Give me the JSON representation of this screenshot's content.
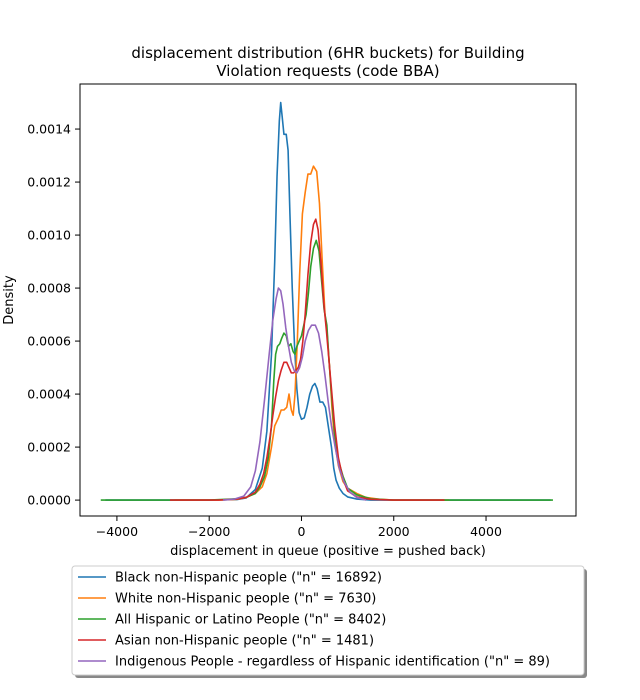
{
  "chart_data": {
    "type": "line",
    "title_lines": [
      "displacement distribution (6HR buckets) for Building",
      "Violation requests (code BBA)"
    ],
    "xlabel": "displacement in queue (positive = pushed back)",
    "ylabel": "Density",
    "xlim": [
      -4800,
      5950
    ],
    "ylim": [
      -6e-05,
      0.00157
    ],
    "xticks": [
      -4000,
      -2000,
      0,
      2000,
      4000
    ],
    "xtick_labels": [
      "−4000",
      "−2000",
      "0",
      "2000",
      "4000"
    ],
    "yticks": [
      0,
      0.0002,
      0.0004,
      0.0006,
      0.0008,
      0.001,
      0.0012,
      0.0014
    ],
    "ytick_labels": [
      "0.0000",
      "0.0002",
      "0.0004",
      "0.0006",
      "0.0008",
      "0.0010",
      "0.0012",
      "0.0014"
    ],
    "grid": false,
    "legend_placement": "below plot",
    "series": [
      {
        "name": "Black non-Hispanic people (\"n\" = 16892)",
        "color": "#1f77b4",
        "points": [
          [
            -4250,
            0
          ],
          [
            -2000,
            0
          ],
          [
            -1400,
            2e-06
          ],
          [
            -1200,
            8e-06
          ],
          [
            -1000,
            4e-05
          ],
          [
            -850,
            0.00012
          ],
          [
            -750,
            0.00026
          ],
          [
            -650,
            0.00055
          ],
          [
            -580,
            0.0009
          ],
          [
            -530,
            0.00122
          ],
          [
            -480,
            0.00143
          ],
          [
            -450,
            0.0015
          ],
          [
            -420,
            0.00145
          ],
          [
            -380,
            0.00138
          ],
          [
            -330,
            0.00138
          ],
          [
            -290,
            0.00132
          ],
          [
            -250,
            0.00108
          ],
          [
            -200,
            0.0008
          ],
          [
            -150,
            0.00058
          ],
          [
            -100,
            0.00042
          ],
          [
            -50,
            0.00033
          ],
          [
            0,
            0.000305
          ],
          [
            60,
            0.00031
          ],
          [
            120,
            0.00035
          ],
          [
            180,
            0.0004
          ],
          [
            240,
            0.00043
          ],
          [
            290,
            0.00044
          ],
          [
            340,
            0.00042
          ],
          [
            400,
            0.00037
          ],
          [
            460,
            0.00037
          ],
          [
            520,
            0.00035
          ],
          [
            580,
            0.00028
          ],
          [
            650,
            0.0002
          ],
          [
            700,
            0.00012
          ],
          [
            750,
            7.5e-05
          ],
          [
            820,
            4.5e-05
          ],
          [
            900,
            2.5e-05
          ],
          [
            1000,
            1.2e-05
          ],
          [
            1200,
            4e-06
          ],
          [
            1500,
            0
          ],
          [
            2500,
            0
          ],
          [
            5400,
            0
          ]
        ]
      },
      {
        "name": "White non-Hispanic people (\"n\" = 7630)",
        "color": "#ff7f0e",
        "points": [
          [
            -2750,
            0
          ],
          [
            -1800,
            0
          ],
          [
            -1400,
            3e-06
          ],
          [
            -1200,
            1e-05
          ],
          [
            -1000,
            2.5e-05
          ],
          [
            -850,
            5e-05
          ],
          [
            -750,
            0.0001
          ],
          [
            -650,
            0.0002
          ],
          [
            -580,
            0.00028
          ],
          [
            -500,
            0.00031
          ],
          [
            -440,
            0.00034
          ],
          [
            -380,
            0.00034
          ],
          [
            -320,
            0.00035
          ],
          [
            -270,
            0.0004
          ],
          [
            -220,
            0.00034
          ],
          [
            -180,
            0.00032
          ],
          [
            -140,
            0.0004
          ],
          [
            -90,
            0.0006
          ],
          [
            -40,
            0.00085
          ],
          [
            20,
            0.00108
          ],
          [
            80,
            0.00116
          ],
          [
            140,
            0.00123
          ],
          [
            200,
            0.00123
          ],
          [
            260,
            0.00126
          ],
          [
            330,
            0.00124
          ],
          [
            390,
            0.00112
          ],
          [
            450,
            0.0009
          ],
          [
            510,
            0.0007
          ],
          [
            560,
            0.00062
          ],
          [
            610,
            0.0005
          ],
          [
            660,
            0.00035
          ],
          [
            720,
            0.00022
          ],
          [
            800,
            0.00013
          ],
          [
            900,
            7e-05
          ],
          [
            1000,
            4.5e-05
          ],
          [
            1200,
            2.5e-05
          ],
          [
            1400,
            1e-05
          ],
          [
            1700,
            3e-06
          ],
          [
            2000,
            0
          ],
          [
            3200,
            0
          ]
        ]
      },
      {
        "name": "All Hispanic or Latino People (\"n\" = 8402)",
        "color": "#2ca02c",
        "points": [
          [
            -4350,
            0
          ],
          [
            -2000,
            0
          ],
          [
            -1400,
            5e-06
          ],
          [
            -1200,
            1e-05
          ],
          [
            -1000,
            2.5e-05
          ],
          [
            -900,
            5e-05
          ],
          [
            -800,
            9e-05
          ],
          [
            -720,
            0.00016
          ],
          [
            -650,
            0.00028
          ],
          [
            -600,
            0.00045
          ],
          [
            -560,
            0.00055
          ],
          [
            -520,
            0.00058
          ],
          [
            -470,
            0.00059
          ],
          [
            -430,
            0.00061
          ],
          [
            -380,
            0.00063
          ],
          [
            -330,
            0.00062
          ],
          [
            -280,
            0.00058
          ],
          [
            -230,
            0.00059
          ],
          [
            -180,
            0.00056
          ],
          [
            -140,
            0.00055
          ],
          [
            -100,
            0.00058
          ],
          [
            -50,
            0.0006
          ],
          [
            0,
            0.00062
          ],
          [
            50,
            0.00066
          ],
          [
            100,
            0.0007
          ],
          [
            150,
            0.00078
          ],
          [
            200,
            0.00088
          ],
          [
            260,
            0.00095
          ],
          [
            320,
            0.00098
          ],
          [
            380,
            0.00094
          ],
          [
            440,
            0.00082
          ],
          [
            490,
            0.00072
          ],
          [
            550,
            0.00066
          ],
          [
            600,
            0.00052
          ],
          [
            650,
            0.0004
          ],
          [
            720,
            0.00025
          ],
          [
            800,
            0.00015
          ],
          [
            900,
            9e-05
          ],
          [
            1000,
            4.5e-05
          ],
          [
            1200,
            2e-05
          ],
          [
            1500,
            5e-06
          ],
          [
            2000,
            0
          ],
          [
            5450,
            0
          ]
        ]
      },
      {
        "name": "Asian non-Hispanic people (\"n\" = 1481)",
        "color": "#d62728",
        "points": [
          [
            -2850,
            0
          ],
          [
            -1800,
            0
          ],
          [
            -1400,
            4e-06
          ],
          [
            -1200,
            1e-05
          ],
          [
            -1000,
            3e-05
          ],
          [
            -900,
            6e-05
          ],
          [
            -820,
            0.0001
          ],
          [
            -750,
            0.00016
          ],
          [
            -680,
            0.00024
          ],
          [
            -620,
            0.00032
          ],
          [
            -560,
            0.00039
          ],
          [
            -500,
            0.00045
          ],
          [
            -440,
            0.00049
          ],
          [
            -380,
            0.00052
          ],
          [
            -320,
            0.00052
          ],
          [
            -270,
            0.0005
          ],
          [
            -220,
            0.00048
          ],
          [
            -170,
            0.00048
          ],
          [
            -120,
            0.00049
          ],
          [
            -70,
            0.0005
          ],
          [
            -20,
            0.00053
          ],
          [
            30,
            0.0006
          ],
          [
            80,
            0.0007
          ],
          [
            140,
            0.00085
          ],
          [
            200,
            0.00097
          ],
          [
            260,
            0.00104
          ],
          [
            310,
            0.00106
          ],
          [
            360,
            0.00102
          ],
          [
            420,
            0.0009
          ],
          [
            480,
            0.00075
          ],
          [
            540,
            0.00064
          ],
          [
            600,
            0.00052
          ],
          [
            650,
            0.00042
          ],
          [
            720,
            0.00028
          ],
          [
            800,
            0.00016
          ],
          [
            900,
            8e-05
          ],
          [
            1000,
            3.5e-05
          ],
          [
            1200,
            1.2e-05
          ],
          [
            1500,
            3e-06
          ],
          [
            2000,
            0
          ],
          [
            3100,
            0
          ]
        ]
      },
      {
        "name": "Indigenous People - regardless of Hispanic identification (\"n\" = 89)",
        "color": "#9467bd",
        "points": [
          [
            -1700,
            0
          ],
          [
            -1450,
            4e-06
          ],
          [
            -1250,
            1.5e-05
          ],
          [
            -1100,
            5e-05
          ],
          [
            -1000,
            0.00011
          ],
          [
            -900,
            0.00022
          ],
          [
            -800,
            0.00038
          ],
          [
            -700,
            0.00055
          ],
          [
            -620,
            0.00068
          ],
          [
            -550,
            0.00076
          ],
          [
            -500,
            0.0008
          ],
          [
            -450,
            0.00079
          ],
          [
            -400,
            0.00074
          ],
          [
            -340,
            0.00065
          ],
          [
            -280,
            0.00058
          ],
          [
            -220,
            0.00052
          ],
          [
            -160,
            0.00049
          ],
          [
            -100,
            0.00048
          ],
          [
            -40,
            0.0005
          ],
          [
            20,
            0.00054
          ],
          [
            80,
            0.0006
          ],
          [
            150,
            0.00064
          ],
          [
            220,
            0.00066
          ],
          [
            300,
            0.00066
          ],
          [
            370,
            0.00063
          ],
          [
            440,
            0.00056
          ],
          [
            510,
            0.00047
          ],
          [
            580,
            0.00037
          ],
          [
            650,
            0.00028
          ],
          [
            730,
            0.0002
          ],
          [
            820,
            0.00012
          ],
          [
            920,
            7e-05
          ],
          [
            1050,
            3e-05
          ],
          [
            1200,
            1e-05
          ],
          [
            1400,
            0
          ]
        ]
      }
    ]
  }
}
